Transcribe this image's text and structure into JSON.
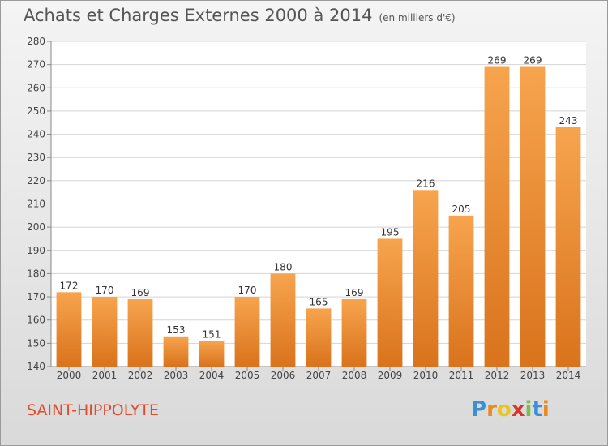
{
  "title": "Achats et Charges Externes 2000 à 2014",
  "unit": "(en milliers d'€)",
  "commune": "SAINT-HIPPOLYTE",
  "logo": {
    "text": "Proxiti",
    "letters": [
      "P",
      "r",
      "o",
      "x",
      "i",
      "t",
      "i"
    ]
  },
  "colors": {
    "bar_top": "#f7a44e",
    "bar_bottom": "#d9731c",
    "accent": "#e24a2a"
  },
  "chart_data": {
    "type": "bar",
    "title": "Achats et Charges Externes 2000 à 2014",
    "xlabel": "",
    "ylabel": "",
    "categories": [
      "2000",
      "2001",
      "2002",
      "2003",
      "2004",
      "2005",
      "2006",
      "2007",
      "2008",
      "2009",
      "2010",
      "2011",
      "2012",
      "2013",
      "2014"
    ],
    "values": [
      172,
      170,
      169,
      153,
      151,
      170,
      180,
      165,
      169,
      195,
      216,
      205,
      269,
      269,
      243
    ],
    "ylim": [
      140,
      280
    ],
    "yticks": [
      140,
      150,
      160,
      170,
      180,
      190,
      200,
      210,
      220,
      230,
      240,
      250,
      260,
      270,
      280
    ],
    "grid": true
  }
}
